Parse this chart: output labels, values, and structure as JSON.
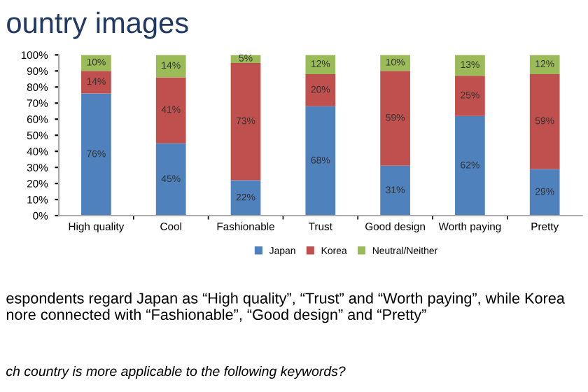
{
  "chart_data": {
    "type": "bar",
    "stacked": true,
    "title": "ountry images",
    "categories": [
      "High quality",
      "Cool",
      "Fashionable",
      "Trust",
      "Good design",
      "Worth paying",
      "Pretty"
    ],
    "series": [
      {
        "name": "Japan",
        "color": "#4f81bd",
        "values": [
          76,
          45,
          22,
          68,
          31,
          62,
          29
        ],
        "value_labels": [
          "76%",
          "45%",
          "22%",
          "68%",
          "31%",
          "62%",
          "29%"
        ]
      },
      {
        "name": "Korea",
        "color": "#c0504d",
        "values": [
          14,
          41,
          73,
          20,
          59,
          25,
          59
        ],
        "value_labels": [
          "14%",
          "41%",
          "73%",
          "20%",
          "59%",
          "25%",
          "59%"
        ]
      },
      {
        "name": "Neutral/Neither",
        "color": "#9bbb59",
        "values": [
          10,
          14,
          5,
          12,
          10,
          13,
          12
        ],
        "value_labels": [
          "10%",
          "14%",
          "5%",
          "12%",
          "10%",
          "13%",
          "12%"
        ]
      }
    ],
    "ylim": [
      0,
      100
    ],
    "yticks": [
      {
        "value": 0,
        "label": "0%"
      },
      {
        "value": 10,
        "label": "10%"
      },
      {
        "value": 20,
        "label": "20%"
      },
      {
        "value": 30,
        "label": "30%"
      },
      {
        "value": 40,
        "label": "40%"
      },
      {
        "value": 50,
        "label": "50%"
      },
      {
        "value": 60,
        "label": "60%"
      },
      {
        "value": 70,
        "label": "70%"
      },
      {
        "value": 80,
        "label": "80%"
      },
      {
        "value": 90,
        "label": "90%"
      },
      {
        "value": 100,
        "label": "100%"
      }
    ],
    "grid": false,
    "legend": "bottom",
    "annotations": [
      "espondents regard Japan as “High quality”, “Trust” and “Worth paying”, while Korea\nnore connected with “Fashionable”, “Good design” and “Pretty”",
      "ch country is more applicable to the following keywords?"
    ]
  }
}
